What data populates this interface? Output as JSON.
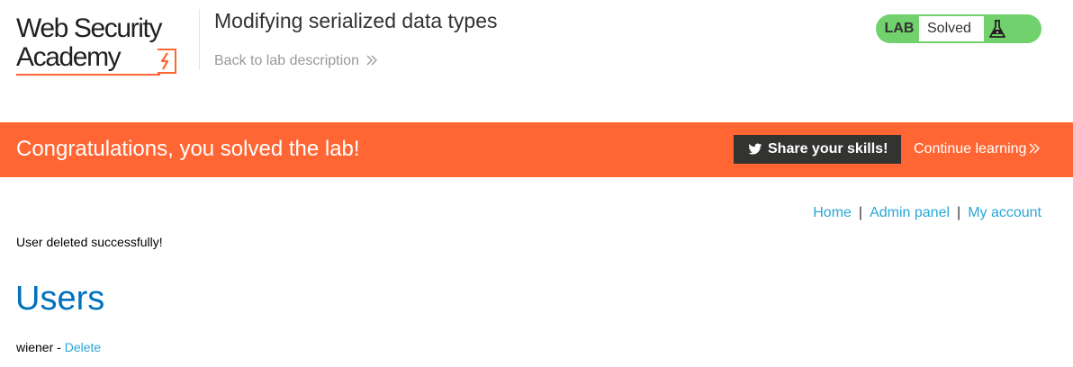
{
  "header": {
    "logo": {
      "line1": "Web Security",
      "line2": "Academy"
    },
    "lab_title": "Modifying serialized data types",
    "back_link": "Back to lab description",
    "lab_status": {
      "label": "LAB",
      "value": "Solved"
    }
  },
  "banner": {
    "message": "Congratulations, you solved the lab!",
    "share_button": "Share your skills!",
    "continue_link": "Continue learning"
  },
  "nav": {
    "home": "Home",
    "separator": "|",
    "admin_panel": "Admin panel",
    "my_account": "My account"
  },
  "content": {
    "message": "User deleted successfully!",
    "heading": "Users",
    "users": [
      {
        "name": "wiener",
        "separator": " - ",
        "action": "Delete"
      }
    ]
  },
  "colors": {
    "accent_orange": "#ff6633",
    "link_blue": "#29a7d7",
    "heading_blue": "#0071bc",
    "status_green": "#70d16d",
    "dark": "#333332"
  },
  "icons": {
    "logo_mark": "lightning-bolt-bracket-icon",
    "back_chevron": "double-chevron-right-icon",
    "flask": "flask-icon",
    "twitter": "twitter-icon",
    "continue_chevron": "double-chevron-right-icon"
  }
}
